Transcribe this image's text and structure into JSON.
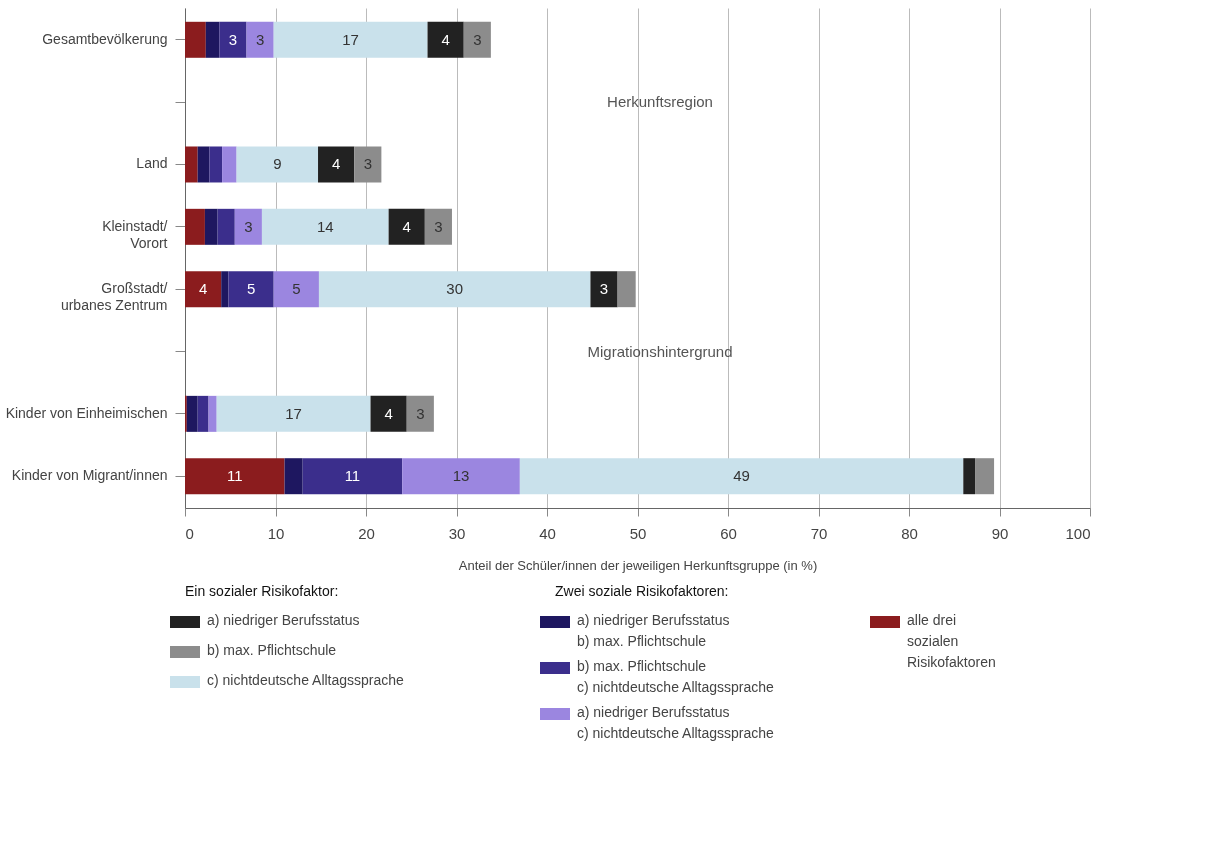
{
  "chart_data": {
    "type": "bar",
    "orientation": "horizontal",
    "stacked": true,
    "categories": [
      "Gesamtbevölkerung",
      "Land",
      "Kleinstadt/\nVorort",
      "Großstadt/\nurbanes Zentrum",
      "Kinder von Einheimischen",
      "Kinder von Migrant/innen"
    ],
    "series": [
      {
        "name": "alle drei\nsozialen\nRisikofaktoren",
        "color": "#8b1c1e",
        "values": [
          2.3,
          1.4,
          2.2,
          4,
          0.2,
          11
        ],
        "value_labels": [
          null,
          null,
          null,
          "4",
          null,
          "11"
        ]
      },
      {
        "name": "a) niedriger Berufsstatus\nb) max. Pflichtschule",
        "color": "#1e1760",
        "values": [
          1.5,
          1.3,
          1.4,
          0.8,
          1.2,
          2
        ],
        "value_labels": [
          null,
          null,
          null,
          null,
          null,
          null
        ]
      },
      {
        "name": "b) max. Pflichtschule\nc) nichtdeutsche Alltagssprache",
        "color": "#3b2e8c",
        "values": [
          3,
          1.4,
          1.9,
          5,
          1.2,
          11
        ],
        "value_labels": [
          "3",
          null,
          null,
          "5",
          null,
          "11"
        ]
      },
      {
        "name": "a) niedriger Berufsstatus\nc) nichtdeutsche Alltagssprache",
        "color": "#9b86e0",
        "values": [
          3,
          1.6,
          3,
          5,
          0.9,
          13
        ],
        "value_labels": [
          "3",
          null,
          "3",
          "5",
          null,
          "13"
        ]
      },
      {
        "name": "c) nichtdeutsche Alltagssprache",
        "color": "#c9e1eb",
        "values": [
          17,
          9,
          14,
          30,
          17,
          49
        ],
        "value_labels": [
          "17",
          "9",
          "14",
          "30",
          "17",
          "49"
        ]
      },
      {
        "name": "a) niedriger Berufsstatus",
        "color": "#222222",
        "values": [
          4,
          4,
          4,
          3,
          4,
          1.3
        ],
        "value_labels": [
          "4",
          "4",
          "4",
          "3",
          "4",
          null
        ]
      },
      {
        "name": "b) max. Pflichtschule",
        "color": "#8c8c8c",
        "values": [
          3,
          3,
          3,
          2,
          3,
          2.1
        ],
        "value_labels": [
          "3",
          "3",
          "3",
          null,
          "3",
          null
        ]
      }
    ],
    "xlabel": "Anteil der Schüler/innen der jeweiligen Herkunftsgruppe (in %)",
    "xlim": [
      0,
      100
    ],
    "xticks": [
      0,
      10,
      20,
      30,
      40,
      50,
      60,
      70,
      80,
      90,
      100
    ],
    "grid": "x",
    "legend": "bottom",
    "annotations": [
      "Herkunftsregion",
      "Migrationshintergrund",
      "Ein sozialer Risikofaktor:",
      "Zwei soziale Risikofaktoren:"
    ]
  }
}
